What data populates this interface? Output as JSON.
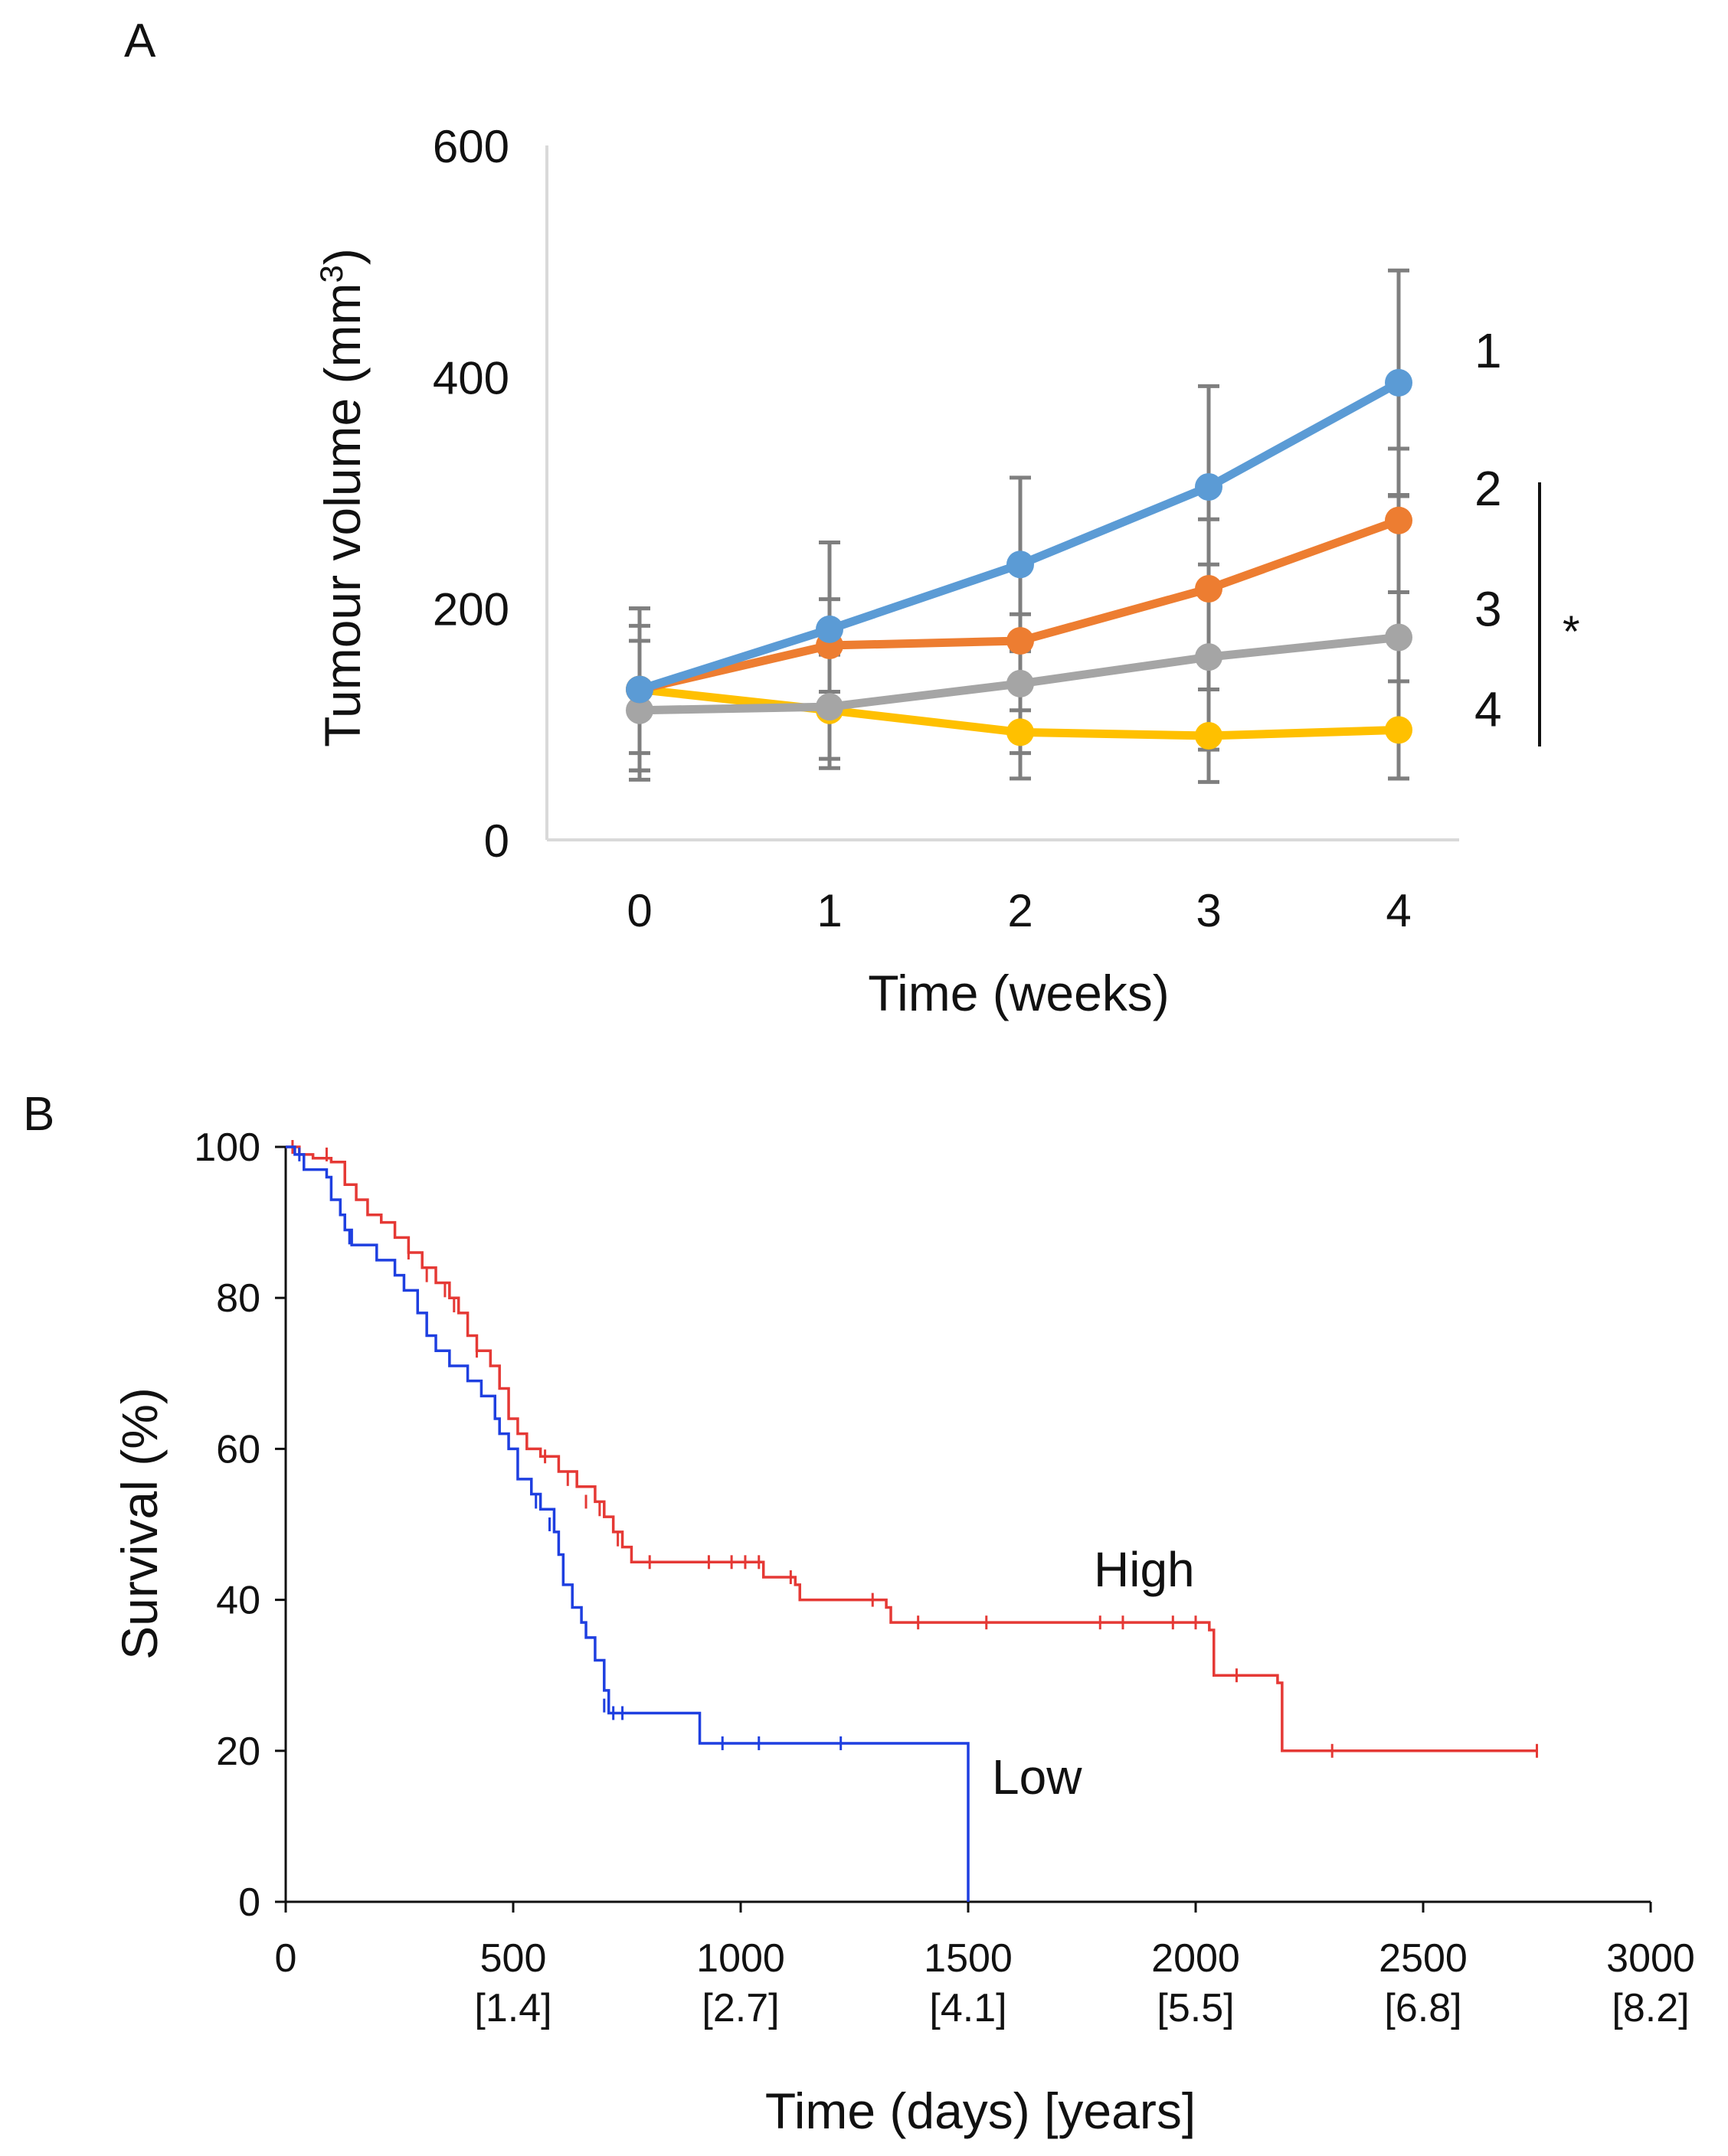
{
  "panels": {
    "a": {
      "label": "A"
    },
    "b": {
      "label": "B"
    }
  },
  "chart_data": [
    {
      "type": "line",
      "panel": "A",
      "title": "",
      "xlabel": "Time (weeks)",
      "ylabel_prefix": "Tumour volume (mm",
      "ylabel_sup": "3",
      "ylabel_suffix": ")",
      "x": [
        0,
        1,
        2,
        3,
        4
      ],
      "x_ticks": [
        "0",
        "1",
        "2",
        "3",
        "4"
      ],
      "y_ticks": [
        "0",
        "200",
        "400",
        "600"
      ],
      "ylim": [
        0,
        600
      ],
      "grid": false,
      "series": [
        {
          "name": "4",
          "color": "#FFC000",
          "values": [
            130,
            112,
            93,
            90,
            95
          ],
          "error": [
            70,
            50,
            40,
            40,
            42
          ]
        },
        {
          "name": "3",
          "color": "#A5A5A5",
          "values": [
            112,
            115,
            135,
            158,
            175
          ],
          "error": [
            60,
            45,
            60,
            80,
            122
          ]
        },
        {
          "name": "2",
          "color": "#ED7D31",
          "values": [
            130,
            168,
            172,
            217,
            276
          ],
          "error": [
            55,
            40,
            60,
            60,
            62
          ]
        },
        {
          "name": "1",
          "color": "#5B9BD5",
          "values": [
            130,
            182,
            238,
            305,
            395
          ],
          "error": [
            70,
            75,
            75,
            87,
            97
          ]
        }
      ],
      "significance": {
        "label": "*",
        "groups": [
          "2",
          "3",
          "4"
        ]
      }
    },
    {
      "type": "line",
      "subtype": "kaplan-meier",
      "panel": "B",
      "title": "",
      "xlabel": "Time (days) [years]",
      "ylabel": "Survival (%)",
      "x_ticks": [
        "0",
        "500",
        "1000",
        "1500",
        "2000",
        "2500",
        "3000"
      ],
      "x_ticks_years": [
        "",
        "[1.4]",
        "[2.7]",
        "[4.1]",
        "[5.5]",
        "[6.8]",
        "[8.2]"
      ],
      "y_ticks": [
        "0",
        "20",
        "40",
        "60",
        "80",
        "100"
      ],
      "xlim": [
        0,
        3000
      ],
      "ylim": [
        0,
        100
      ],
      "grid": false,
      "series": [
        {
          "name": "High",
          "color": "#E53935",
          "steps": [
            [
              0,
              100
            ],
            [
              30,
              99
            ],
            [
              60,
              98.5
            ],
            [
              100,
              98
            ],
            [
              130,
              95
            ],
            [
              155,
              93
            ],
            [
              180,
              91
            ],
            [
              210,
              90
            ],
            [
              240,
              88
            ],
            [
              270,
              86
            ],
            [
              300,
              84
            ],
            [
              330,
              82
            ],
            [
              360,
              80
            ],
            [
              380,
              78
            ],
            [
              400,
              75
            ],
            [
              420,
              73
            ],
            [
              450,
              71
            ],
            [
              470,
              68
            ],
            [
              490,
              64
            ],
            [
              510,
              62
            ],
            [
              530,
              60
            ],
            [
              560,
              59
            ],
            [
              600,
              57
            ],
            [
              640,
              55
            ],
            [
              680,
              53
            ],
            [
              700,
              51
            ],
            [
              720,
              49
            ],
            [
              740,
              47
            ],
            [
              760,
              45
            ],
            [
              1050,
              43
            ],
            [
              1120,
              42
            ],
            [
              1130,
              40
            ],
            [
              1320,
              39
            ],
            [
              1330,
              37
            ],
            [
              2030,
              36
            ],
            [
              2040,
              30
            ],
            [
              2180,
              29
            ],
            [
              2190,
              20
            ],
            [
              2750,
              20
            ]
          ],
          "censored": [
            [
              15,
              100
            ],
            [
              90,
              99
            ],
            [
              270,
              86
            ],
            [
              310,
              83
            ],
            [
              350,
              81
            ],
            [
              370,
              79
            ],
            [
              420,
              73
            ],
            [
              570,
              59
            ],
            [
              620,
              56
            ],
            [
              660,
              53
            ],
            [
              690,
              52
            ],
            [
              730,
              48
            ],
            [
              800,
              45
            ],
            [
              930,
              45
            ],
            [
              980,
              45
            ],
            [
              1010,
              45
            ],
            [
              1040,
              45
            ],
            [
              1110,
              43
            ],
            [
              1290,
              40
            ],
            [
              1390,
              37
            ],
            [
              1540,
              37
            ],
            [
              1790,
              37
            ],
            [
              1840,
              37
            ],
            [
              1950,
              37
            ],
            [
              2000,
              37
            ],
            [
              2090,
              30
            ],
            [
              2300,
              20
            ],
            [
              2750,
              20
            ]
          ]
        },
        {
          "name": "Low",
          "color": "#1E3FE0",
          "steps": [
            [
              0,
              100
            ],
            [
              20,
              99
            ],
            [
              40,
              97
            ],
            [
              90,
              96
            ],
            [
              100,
              93
            ],
            [
              120,
              91
            ],
            [
              130,
              89
            ],
            [
              145,
              87
            ],
            [
              200,
              85
            ],
            [
              240,
              83
            ],
            [
              260,
              81
            ],
            [
              290,
              78
            ],
            [
              310,
              75
            ],
            [
              330,
              73
            ],
            [
              360,
              71
            ],
            [
              400,
              69
            ],
            [
              430,
              67
            ],
            [
              460,
              64
            ],
            [
              470,
              62
            ],
            [
              490,
              60
            ],
            [
              510,
              56
            ],
            [
              540,
              54
            ],
            [
              560,
              52
            ],
            [
              590,
              49
            ],
            [
              600,
              46
            ],
            [
              610,
              42
            ],
            [
              630,
              39
            ],
            [
              650,
              37
            ],
            [
              660,
              35
            ],
            [
              680,
              32
            ],
            [
              700,
              28
            ],
            [
              710,
              25
            ],
            [
              900,
              25
            ],
            [
              910,
              21
            ],
            [
              1500,
              21
            ],
            [
              1500,
              0
            ]
          ],
          "censored": [
            [
              30,
              99
            ],
            [
              140,
              88
            ],
            [
              460,
              65
            ],
            [
              550,
              53
            ],
            [
              580,
              50
            ],
            [
              600,
              47
            ],
            [
              700,
              26
            ],
            [
              720,
              25
            ],
            [
              740,
              25
            ],
            [
              960,
              21
            ],
            [
              1040,
              21
            ],
            [
              1220,
              21
            ]
          ]
        }
      ],
      "annotations": {
        "high": "High",
        "low": "Low"
      }
    }
  ]
}
